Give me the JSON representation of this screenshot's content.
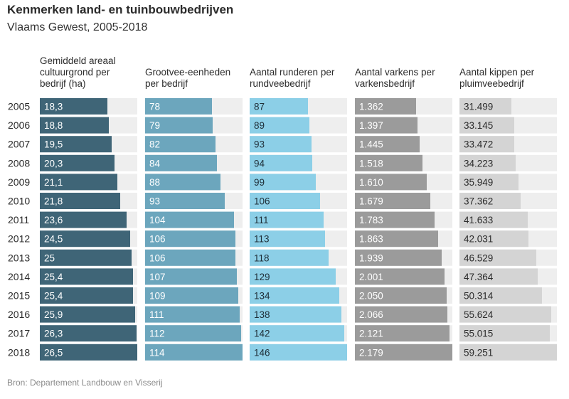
{
  "title": "Kenmerken land- en tuinbouwbedrijven",
  "subtitle": "Vlaams Gewest, 2005-2018",
  "source": "Bron: Departement Landbouw en Visserij",
  "chart_data": {
    "type": "bar",
    "categories": [
      "2005",
      "2006",
      "2007",
      "2008",
      "2009",
      "2010",
      "2011",
      "2012",
      "2013",
      "2014",
      "2015",
      "2016",
      "2017",
      "2018"
    ],
    "series": [
      {
        "name": "Gemiddeld areaal cultuurgrond per bedrijf (ha)",
        "header_lines": [
          "Gemiddeld areaal",
          "cultuurgrond per",
          "bedrijf (ha)"
        ],
        "color": "#3f6577",
        "label_color": "#ffffff",
        "values": [
          18.3,
          18.8,
          19.5,
          20.3,
          21.1,
          21.8,
          23.6,
          24.5,
          25,
          25.4,
          25.4,
          25.9,
          26.3,
          26.5
        ],
        "labels": [
          "18,3",
          "18,8",
          "19,5",
          "20,3",
          "21,1",
          "21,8",
          "23,6",
          "24,5",
          "25",
          "25,4",
          "25,4",
          "25,9",
          "26,3",
          "26,5"
        ]
      },
      {
        "name": "Grootvee-eenheden per bedrijf",
        "header_lines": [
          "Grootvee-eenheden",
          "per bedrijf"
        ],
        "color": "#6ca6bd",
        "label_color": "#ffffff",
        "values": [
          78,
          79,
          82,
          84,
          88,
          93,
          104,
          106,
          106,
          107,
          109,
          111,
          112,
          114
        ],
        "labels": [
          "78",
          "79",
          "82",
          "84",
          "88",
          "93",
          "104",
          "106",
          "106",
          "107",
          "109",
          "111",
          "112",
          "114"
        ]
      },
      {
        "name": "Aantal runderen per rundveebedrijf",
        "header_lines": [
          "Aantal runderen per",
          "rundveebedrijf"
        ],
        "color": "#8ccfe7",
        "label_color": "#1f2f38",
        "values": [
          87,
          89,
          93,
          94,
          99,
          106,
          111,
          113,
          118,
          129,
          134,
          138,
          142,
          146
        ],
        "labels": [
          "87",
          "89",
          "93",
          "94",
          "99",
          "106",
          "111",
          "113",
          "118",
          "129",
          "134",
          "138",
          "142",
          "146"
        ]
      },
      {
        "name": "Aantal varkens per varkensbedrijf",
        "header_lines": [
          "Aantal varkens per",
          "varkensbedrijf"
        ],
        "color": "#9b9b9b",
        "label_color": "#ffffff",
        "values": [
          1362,
          1397,
          1445,
          1518,
          1610,
          1679,
          1783,
          1863,
          1939,
          2001,
          2050,
          2066,
          2121,
          2179
        ],
        "labels": [
          "1.362",
          "1.397",
          "1.445",
          "1.518",
          "1.610",
          "1.679",
          "1.783",
          "1.863",
          "1.939",
          "2.001",
          "2.050",
          "2.066",
          "2.121",
          "2.179"
        ]
      },
      {
        "name": "Aantal kippen per pluimveebedrijf",
        "header_lines": [
          "Aantal kippen per",
          "pluimveebedrijf"
        ],
        "color": "#d4d4d4",
        "label_color": "#2b2b2b",
        "values": [
          31499,
          33145,
          33472,
          34223,
          35949,
          37362,
          41633,
          42031,
          46529,
          47364,
          50314,
          55624,
          55015,
          59251
        ],
        "labels": [
          "31.499",
          "33.145",
          "33.472",
          "34.223",
          "35.949",
          "37.362",
          "41.633",
          "42.031",
          "46.529",
          "47.364",
          "50.314",
          "55.624",
          "55.015",
          "59.251"
        ]
      }
    ],
    "background_track_color": "#eeeeee",
    "grid": false,
    "legend": "none"
  }
}
